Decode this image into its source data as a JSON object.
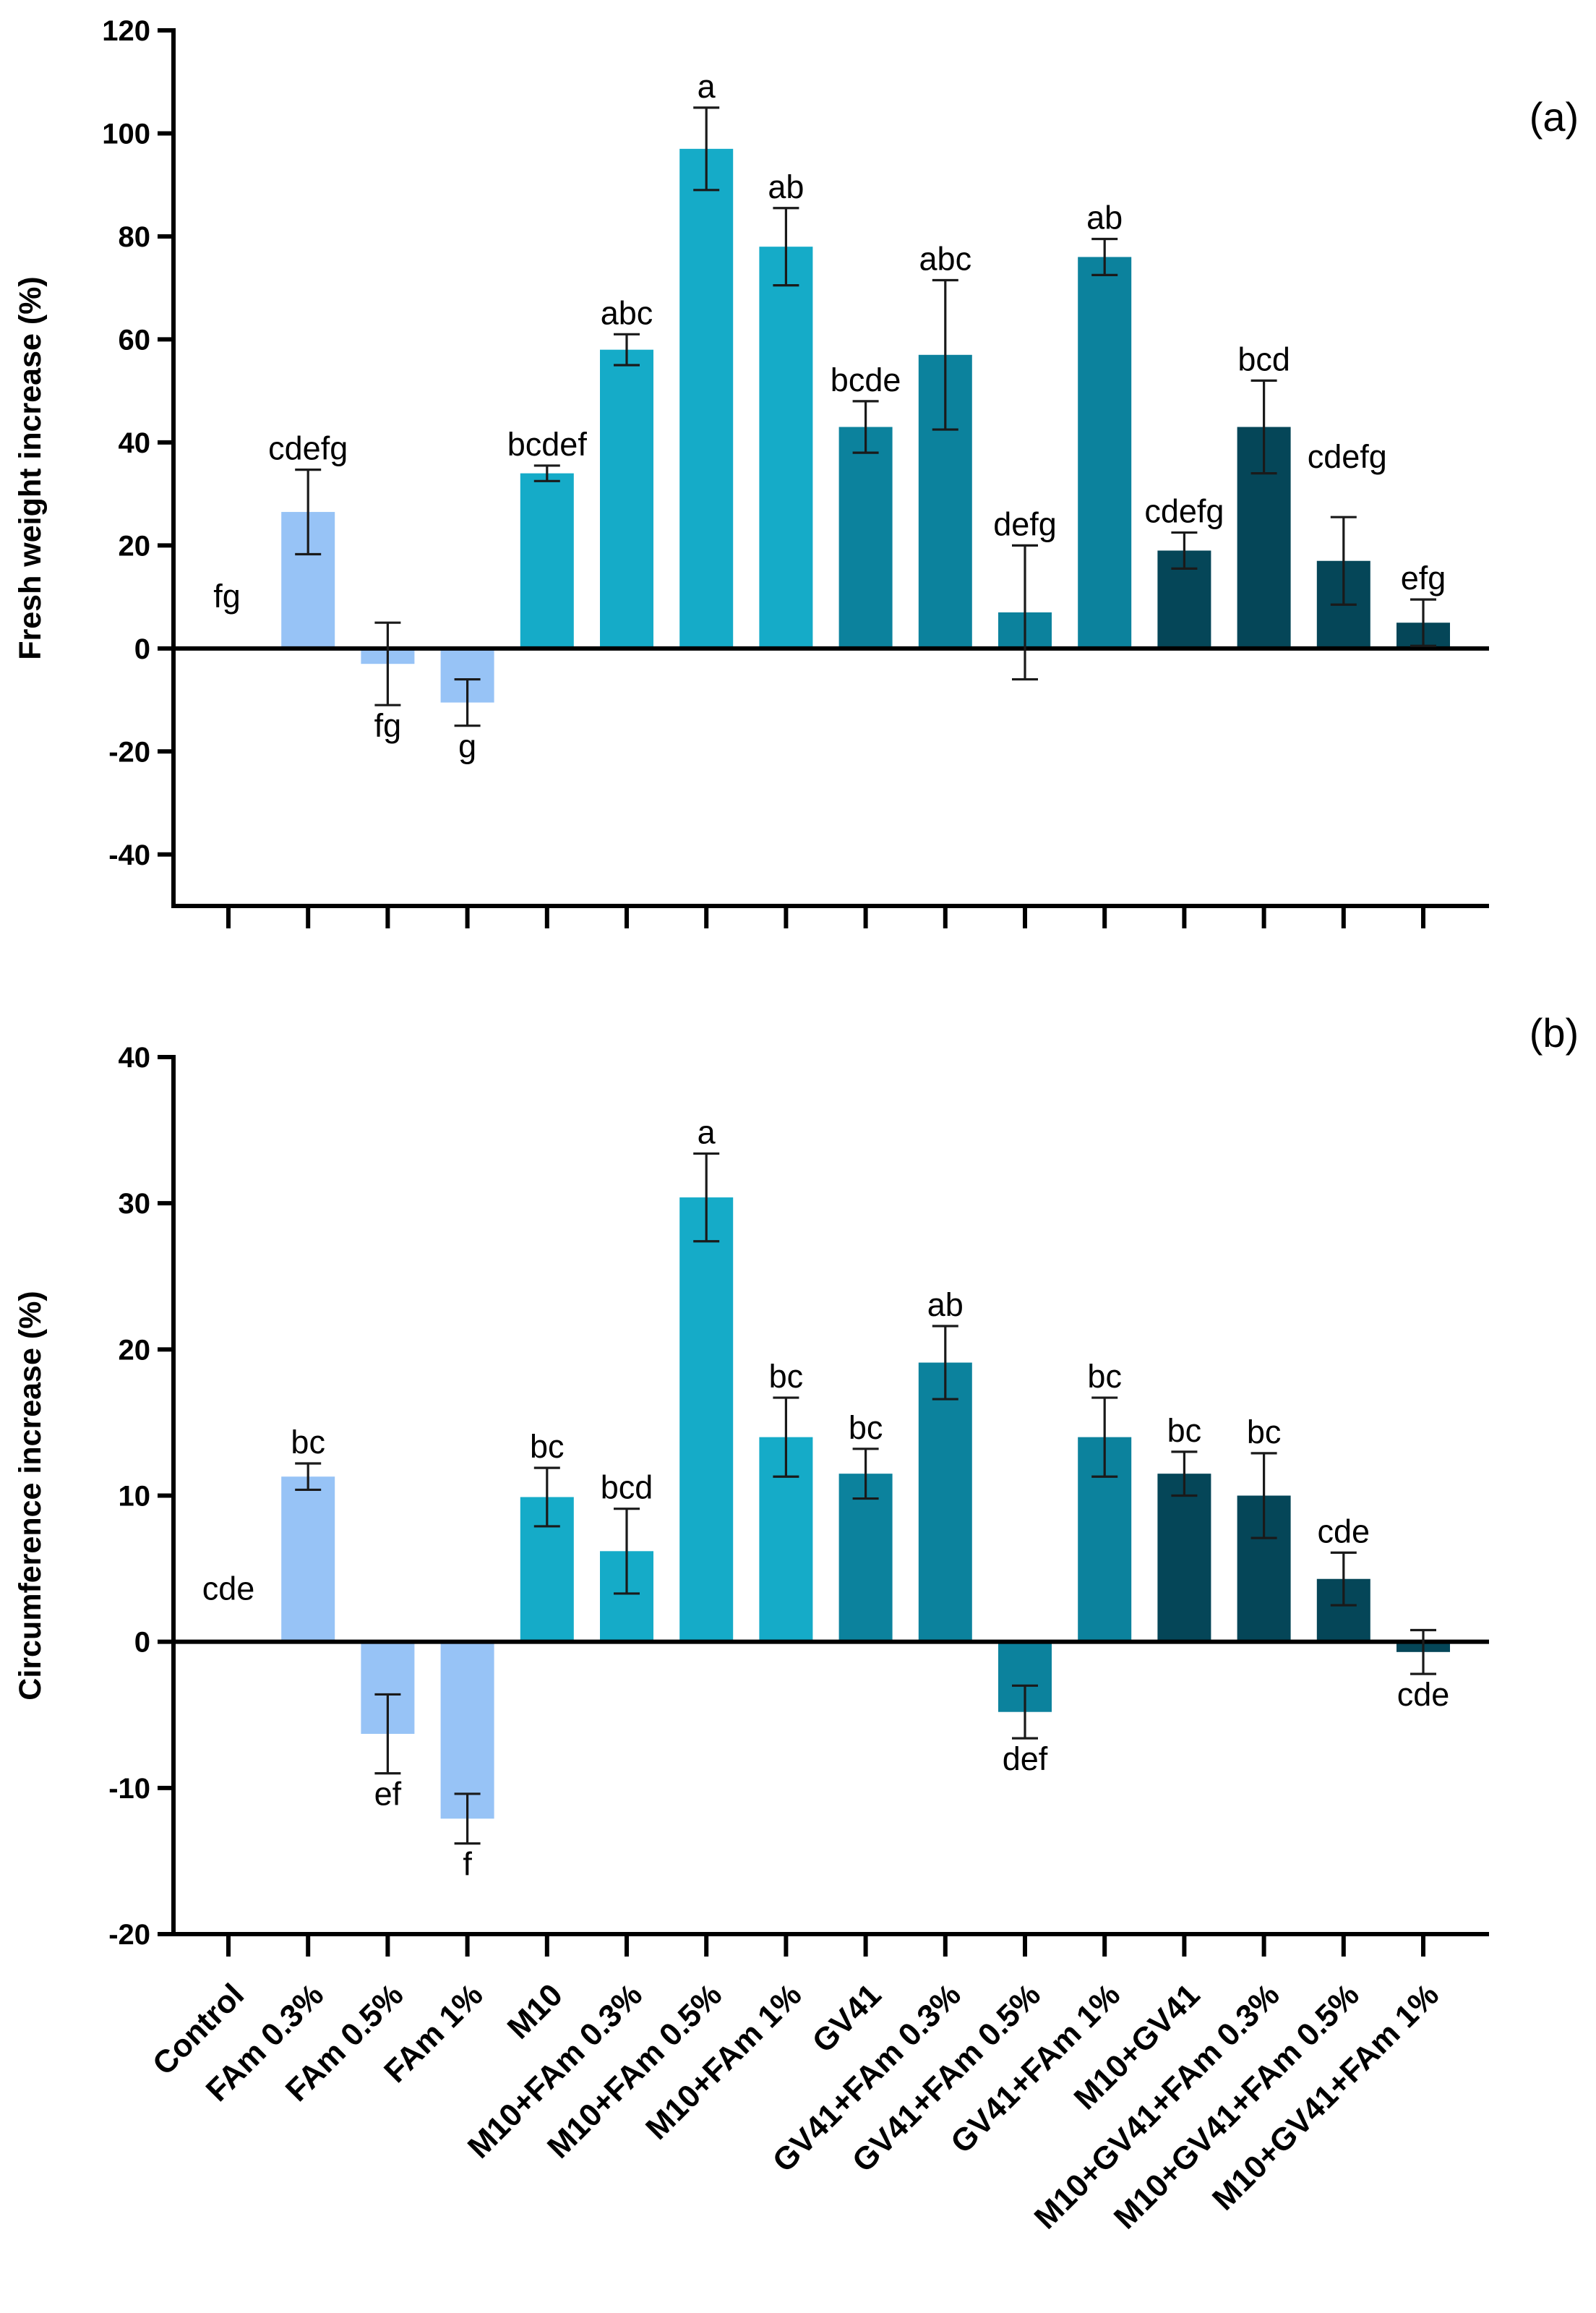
{
  "colors": {
    "light_blue": "#97c3f6",
    "cyan": "#15abc8",
    "teal": "#0c829d",
    "dark_teal": "#054658"
  },
  "categories": [
    "Control",
    "FAm 0.3%",
    "FAm 0.5%",
    "FAm 1%",
    "M10",
    "M10+FAm 0.3%",
    "M10+FAm 0.5%",
    "M10+FAm 1%",
    "GV41",
    "GV41+FAm 0.3%",
    "GV41+FAm 0.5%",
    "GV41+FAm 1%",
    "M10+GV41",
    "M10+GV41+FAm 0.3%",
    "M10+GV41+FAm 0.5%",
    "M10+GV41+FAm 1%"
  ],
  "bar_color_keys": [
    "light_blue",
    "light_blue",
    "light_blue",
    "light_blue",
    "cyan",
    "cyan",
    "cyan",
    "cyan",
    "teal",
    "teal",
    "teal",
    "teal",
    "dark_teal",
    "dark_teal",
    "dark_teal",
    "dark_teal"
  ],
  "chart_data": [
    {
      "type": "bar",
      "panel_label": "(a)",
      "title": "",
      "xlabel": "",
      "ylabel": "Fresh weight increase (%)",
      "ylim": [
        -50,
        120
      ],
      "yticks": [
        120,
        100,
        80,
        60,
        40,
        20,
        0,
        -20,
        -40
      ],
      "grid": false,
      "categories": [
        "Control",
        "FAm 0.3%",
        "FAm 0.5%",
        "FAm 1%",
        "M10",
        "M10+FAm 0.3%",
        "M10+FAm 0.5%",
        "M10+FAm 1%",
        "GV41",
        "GV41+FAm 0.3%",
        "GV41+FAm 0.5%",
        "GV41+FAm 1%",
        "M10+GV41",
        "M10+GV41+FAm 0.3%",
        "M10+GV41+FAm 0.5%",
        "M10+GV41+FAm 1%"
      ],
      "values": [
        0,
        26.5,
        -3,
        -10.5,
        34,
        58,
        97,
        78,
        43,
        57,
        7,
        76,
        19,
        43,
        17,
        5
      ],
      "errors": [
        0,
        8.2,
        8,
        4.5,
        1.5,
        3,
        8,
        7.5,
        5,
        14.5,
        13,
        3.5,
        3.5,
        9,
        8.5,
        4.5
      ],
      "significance": [
        "fg",
        "cdefg",
        "fg",
        "g",
        "bcdef",
        "abc",
        "a",
        "ab",
        "bcde",
        "abc",
        "defg",
        "ab",
        "cdefg",
        "bcd",
        "cdefg",
        "efg"
      ]
    },
    {
      "type": "bar",
      "panel_label": "(b)",
      "title": "",
      "xlabel": "",
      "ylabel": "Circumference increase (%)",
      "ylim": [
        -20,
        40
      ],
      "yticks": [
        40,
        30,
        20,
        10,
        0,
        -10,
        -20
      ],
      "grid": false,
      "categories": [
        "Control",
        "FAm 0.3%",
        "FAm 0.5%",
        "FAm 1%",
        "M10",
        "M10+FAm 0.3%",
        "M10+FAm 0.5%",
        "M10+FAm 1%",
        "GV41",
        "GV41+FAm 0.3%",
        "GV41+FAm 0.5%",
        "GV41+FAm 1%",
        "M10+GV41",
        "M10+GV41+FAm 0.3%",
        "M10+GV41+FAm 0.5%",
        "M10+GV41+FAm 1%"
      ],
      "values": [
        0,
        11.3,
        -6.3,
        -12.1,
        9.9,
        6.2,
        30.4,
        14,
        11.5,
        19.1,
        -4.8,
        14,
        11.5,
        10,
        4.3,
        -0.7
      ],
      "errors": [
        0,
        0.9,
        2.7,
        1.7,
        2,
        2.9,
        3,
        2.7,
        1.7,
        2.5,
        1.8,
        2.7,
        1.5,
        2.9,
        1.8,
        1.5
      ],
      "significance": [
        "cde",
        "bc",
        "ef",
        "f",
        "bc",
        "bcd",
        "a",
        "bc",
        "bc",
        "ab",
        "def",
        "bc",
        "bc",
        "bc",
        "cde",
        "cde"
      ]
    }
  ]
}
